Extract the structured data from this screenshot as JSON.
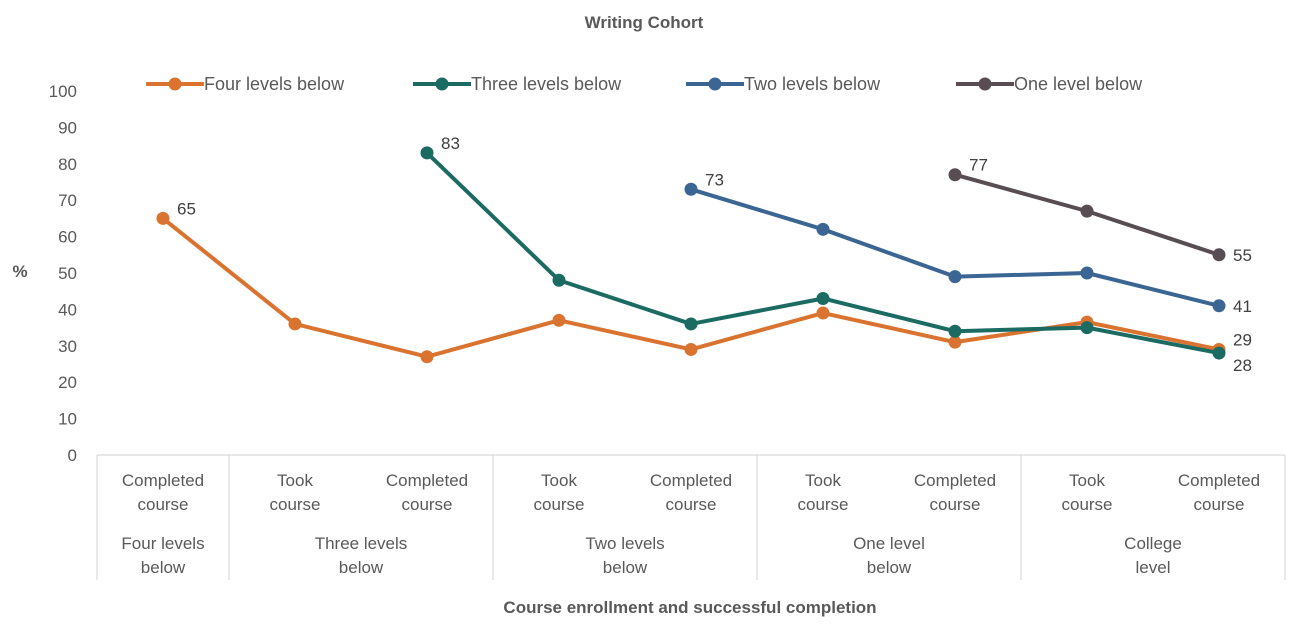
{
  "chart_data": {
    "type": "line",
    "title": "Writing Cohort",
    "xlabel": "Course enrollment and successful completion",
    "ylabel": "%",
    "ylim": [
      0,
      100
    ],
    "yticks": [
      0,
      10,
      20,
      30,
      40,
      50,
      60,
      70,
      80,
      90,
      100
    ],
    "grid": false,
    "legend_position": "top",
    "categories": [
      {
        "line1": "Completed",
        "line2": "course"
      },
      {
        "line1": "Took",
        "line2": "course"
      },
      {
        "line1": "Completed",
        "line2": "course"
      },
      {
        "line1": "Took",
        "line2": "course"
      },
      {
        "line1": "Completed",
        "line2": "course"
      },
      {
        "line1": "Took",
        "line2": "course"
      },
      {
        "line1": "Completed",
        "line2": "course"
      },
      {
        "line1": "Took",
        "line2": "course"
      },
      {
        "line1": "Completed",
        "line2": "course"
      }
    ],
    "groups": [
      {
        "line1": "Four levels",
        "line2": "below",
        "start": 0,
        "end": 0
      },
      {
        "line1": "Three levels",
        "line2": "below",
        "start": 1,
        "end": 2
      },
      {
        "line1": "Two levels",
        "line2": "below",
        "start": 3,
        "end": 4
      },
      {
        "line1": "One level",
        "line2": "below",
        "start": 5,
        "end": 6
      },
      {
        "line1": "College",
        "line2": "level",
        "start": 7,
        "end": 8
      }
    ],
    "series": [
      {
        "name": "Four levels below",
        "color": "#D9732F",
        "values": [
          65,
          36,
          27,
          37,
          29,
          39,
          31,
          36.5,
          29
        ]
      },
      {
        "name": "Three levels below",
        "color": "#1B6B63",
        "values": [
          null,
          null,
          83,
          48,
          36,
          43,
          34,
          35,
          28
        ]
      },
      {
        "name": "Two levels below",
        "color": "#3B6592",
        "values": [
          null,
          null,
          null,
          null,
          73,
          62,
          49,
          50,
          41
        ]
      },
      {
        "name": "One level below",
        "color": "#574D52",
        "values": [
          null,
          null,
          null,
          null,
          null,
          null,
          77,
          67,
          55
        ]
      }
    ],
    "data_labels": [
      {
        "series": 0,
        "index": 0,
        "text": "65",
        "pos": "right-up"
      },
      {
        "series": 1,
        "index": 2,
        "text": "83",
        "pos": "right-up"
      },
      {
        "series": 2,
        "index": 4,
        "text": "73",
        "pos": "right-up"
      },
      {
        "series": 3,
        "index": 6,
        "text": "77",
        "pos": "right-up"
      },
      {
        "series": 3,
        "index": 8,
        "text": "55",
        "pos": "right"
      },
      {
        "series": 2,
        "index": 8,
        "text": "41",
        "pos": "right"
      },
      {
        "series": 0,
        "index": 8,
        "text": "29",
        "pos": "right-up"
      },
      {
        "series": 1,
        "index": 8,
        "text": "28",
        "pos": "right-down"
      }
    ]
  }
}
